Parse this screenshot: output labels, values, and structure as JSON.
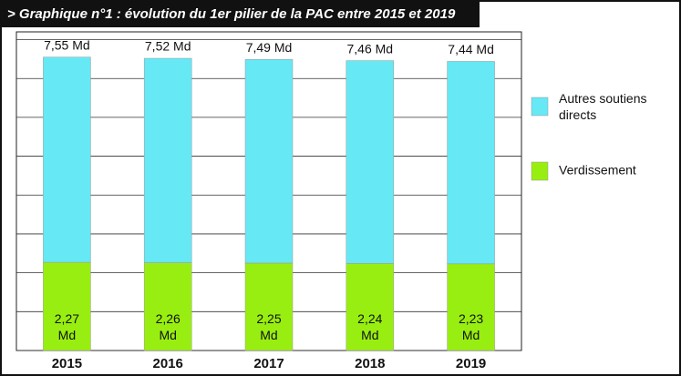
{
  "chart_data": {
    "type": "stacked-bar",
    "title": "> Graphique n°1 : évolution du 1er pilier de la PAC entre 2015 et 2019",
    "categories": [
      "2015",
      "2016",
      "2017",
      "2018",
      "2019"
    ],
    "series": [
      {
        "name": "Verdissement",
        "color": "#99ee11",
        "values": [
          2.27,
          2.26,
          2.25,
          2.24,
          2.23
        ],
        "value_labels": [
          "2,27 Md",
          "2,26 Md",
          "2,25 Md",
          "2,24 Md",
          "2,23 Md"
        ]
      },
      {
        "name": "Autres soutiens directs",
        "color": "#66e8f5",
        "values": [
          5.28,
          5.26,
          5.24,
          5.22,
          5.21
        ]
      }
    ],
    "totals": {
      "values": [
        7.55,
        7.52,
        7.49,
        7.46,
        7.44
      ],
      "value_labels": [
        "7,55 Md",
        "7,52 Md",
        "7,49 Md",
        "7,46 Md",
        "7,44 Md"
      ]
    },
    "ylim": [
      0,
      8.2
    ],
    "yticks": [
      0,
      1,
      2,
      3,
      4,
      5,
      6,
      7,
      8
    ],
    "grid": true
  }
}
